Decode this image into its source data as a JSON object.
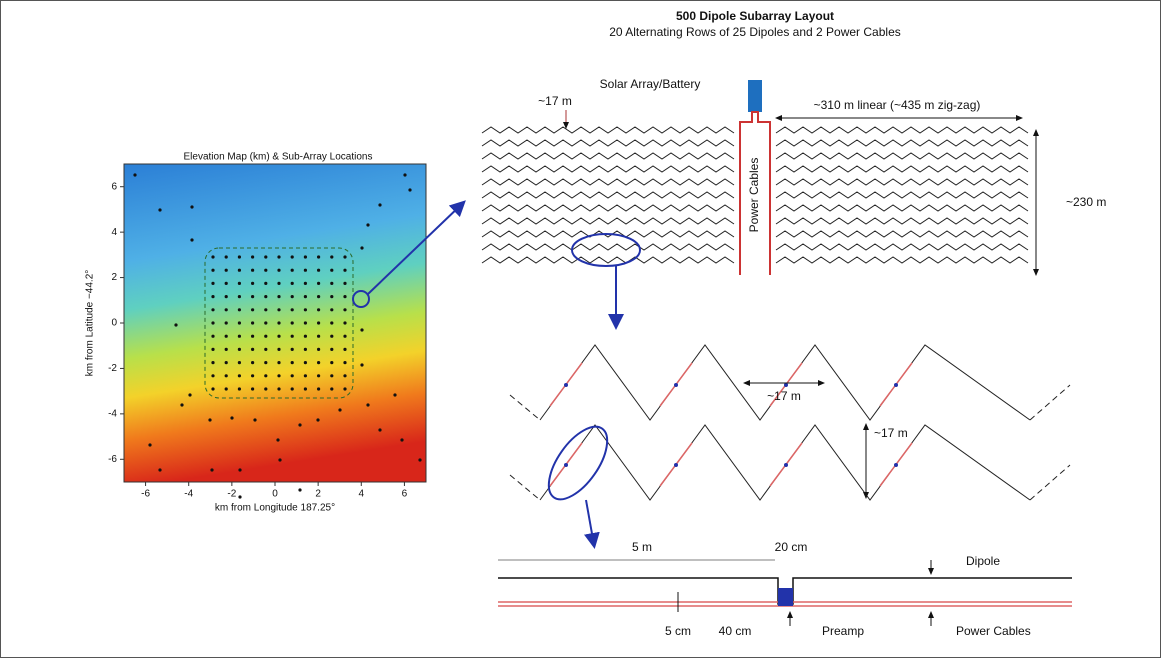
{
  "map": {
    "title": "Elevation Map (km) & Sub-Array Locations",
    "xlabel": "km from Longitude 187.25°",
    "ylabel": "km from Latitude −44.2°",
    "xlim": [
      -7,
      7
    ],
    "ylim": [
      -7,
      7
    ],
    "xticks": [
      -6,
      -4,
      -2,
      0,
      2,
      4,
      6
    ],
    "yticks": [
      -6,
      -4,
      -2,
      0,
      2,
      4,
      6
    ]
  },
  "layout": {
    "title": "500 Dipole Subarray Layout",
    "subtitle": "20 Alternating Rows of 25 Dipoles and 2 Power Cables",
    "solar": "Solar Array/Battery",
    "spacing": "~17 m",
    "length": "~310 m linear (~435 m zig-zag)",
    "cables": "Power Cables",
    "height": "~230 m"
  },
  "zigzag": {
    "width": "~17 m",
    "height": "~17 m"
  },
  "detail": {
    "dipole_len": "5 m",
    "gap": "20 cm",
    "dipole": "Dipole",
    "sep": "5 cm",
    "offset": "40 cm",
    "preamp": "Preamp",
    "power": "Power Cables"
  }
}
